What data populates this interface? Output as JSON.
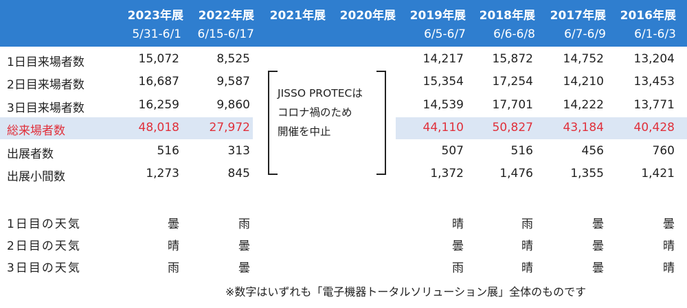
{
  "columns": [
    {
      "year": "2023年展",
      "dates": "5/31-6/1"
    },
    {
      "year": "2022年展",
      "dates": "6/15-6/17"
    },
    {
      "year": "2021年展",
      "dates": ""
    },
    {
      "year": "2020年展",
      "dates": ""
    },
    {
      "year": "2019年展",
      "dates": "6/5-6/7"
    },
    {
      "year": "2018年展",
      "dates": "6/6-6/8"
    },
    {
      "year": "2017年展",
      "dates": "6/7-6/9"
    },
    {
      "year": "2016年展",
      "dates": "6/1-6/3"
    }
  ],
  "rows": [
    {
      "label": "1日目来場者数",
      "values": [
        "15,072",
        "8,525",
        "14,217",
        "15,872",
        "14,752",
        "13,204"
      ]
    },
    {
      "label": "2日目来場者数",
      "values": [
        "16,687",
        "9,587",
        "15,354",
        "17,254",
        "14,210",
        "13,453"
      ]
    },
    {
      "label": "3日目来場者数",
      "values": [
        "16,259",
        "9,860",
        "14,539",
        "17,701",
        "14,222",
        "13,771"
      ]
    },
    {
      "label": "総来場者数",
      "values": [
        "48,018",
        "27,972",
        "44,110",
        "50,827",
        "43,184",
        "40,428"
      ],
      "highlight": true
    },
    {
      "label": "出展者数",
      "values": [
        "516",
        "313",
        "507",
        "516",
        "456",
        "760"
      ]
    },
    {
      "label": "出展小間数",
      "values": [
        "1,273",
        "845",
        "1,372",
        "1,476",
        "1,355",
        "1,421"
      ]
    }
  ],
  "cancel_note": [
    "JISSO PROTECは",
    "コロナ禍のため",
    "開催を中止"
  ],
  "weather_rows": [
    {
      "label": "1日目の天気",
      "values": [
        "曇",
        "雨",
        "晴",
        "雨",
        "曇",
        "曇"
      ]
    },
    {
      "label": "2日目の天気",
      "values": [
        "晴",
        "曇",
        "曇",
        "晴",
        "曇",
        "晴"
      ]
    },
    {
      "label": "3日目の天気",
      "values": [
        "雨",
        "曇",
        "雨",
        "晴",
        "曇",
        "晴"
      ]
    }
  ],
  "footnote": "※数字はいずれも「電子機器トータルソリューション展」全体のものです",
  "colors": {
    "header_bg": "#2f7ecf",
    "highlight_bg": "#dbe6f4",
    "total_text": "#e0303b"
  }
}
